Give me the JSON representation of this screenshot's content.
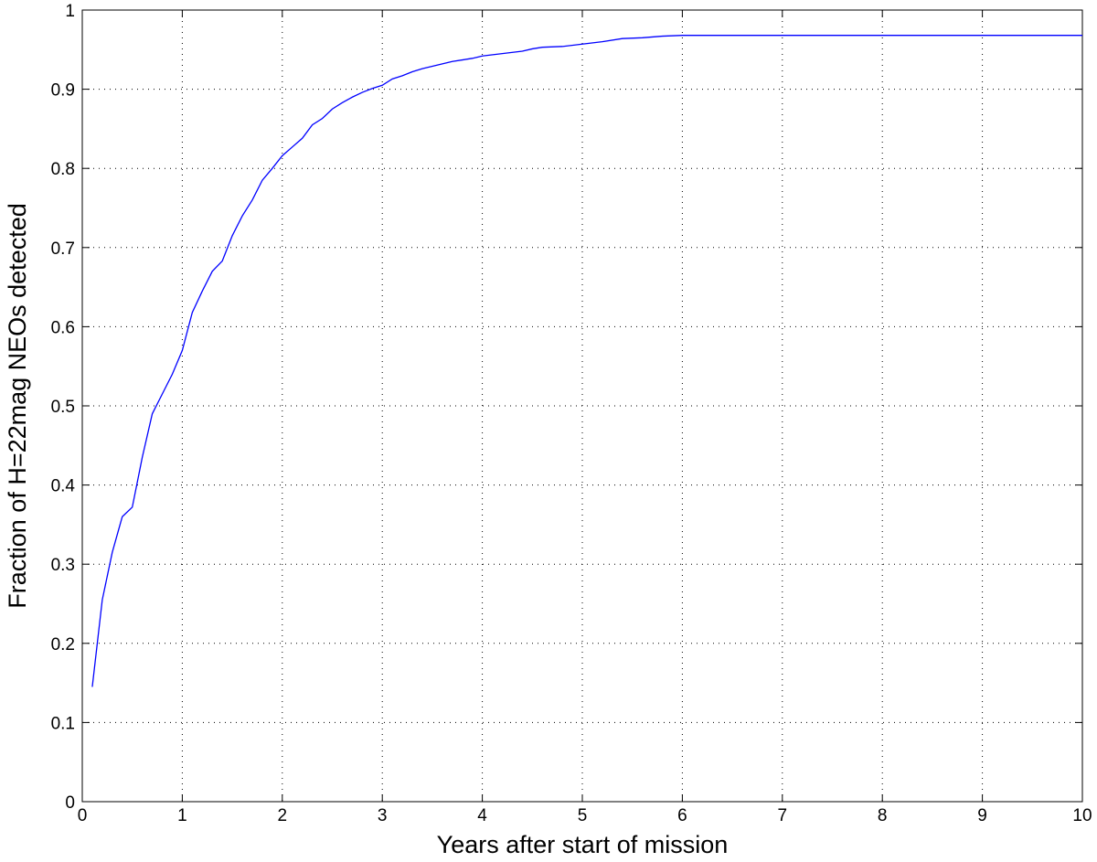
{
  "chart_data": {
    "type": "line",
    "xlabel": "Years after start of mission",
    "ylabel": "Fraction of H=22mag NEOs detected",
    "x": [
      0.1,
      0.2,
      0.3,
      0.4,
      0.5,
      0.6,
      0.7,
      0.8,
      0.9,
      1.0,
      1.1,
      1.2,
      1.3,
      1.4,
      1.5,
      1.6,
      1.7,
      1.8,
      1.9,
      2.0,
      2.1,
      2.2,
      2.3,
      2.4,
      2.5,
      2.6,
      2.7,
      2.8,
      2.9,
      3.0,
      3.1,
      3.2,
      3.3,
      3.4,
      3.5,
      3.6,
      3.7,
      3.8,
      3.9,
      4.0,
      4.2,
      4.4,
      4.5,
      4.6,
      4.8,
      5.0,
      5.2,
      5.4,
      5.6,
      5.8,
      6.0,
      10
    ],
    "series": [
      {
        "color": "#0000ff",
        "values": [
          0.145,
          0.255,
          0.315,
          0.36,
          0.372,
          0.435,
          0.49,
          0.515,
          0.54,
          0.57,
          0.618,
          0.645,
          0.67,
          0.683,
          0.715,
          0.74,
          0.76,
          0.785,
          0.8,
          0.816,
          0.827,
          0.838,
          0.855,
          0.863,
          0.875,
          0.883,
          0.89,
          0.896,
          0.901,
          0.905,
          0.913,
          0.917,
          0.922,
          0.926,
          0.929,
          0.932,
          0.935,
          0.937,
          0.939,
          0.942,
          0.945,
          0.948,
          0.951,
          0.953,
          0.954,
          0.957,
          0.96,
          0.964,
          0.965,
          0.967,
          0.968,
          0.968
        ]
      }
    ],
    "xlim": [
      0,
      10
    ],
    "xticks": [
      0,
      1,
      2,
      3,
      4,
      5,
      6,
      7,
      8,
      9,
      10
    ],
    "ylim": [
      0,
      1
    ],
    "yticks": [
      0,
      0.1,
      0.2,
      0.3,
      0.4,
      0.5,
      0.6,
      0.7,
      0.8,
      0.9,
      1
    ],
    "grid": true
  }
}
